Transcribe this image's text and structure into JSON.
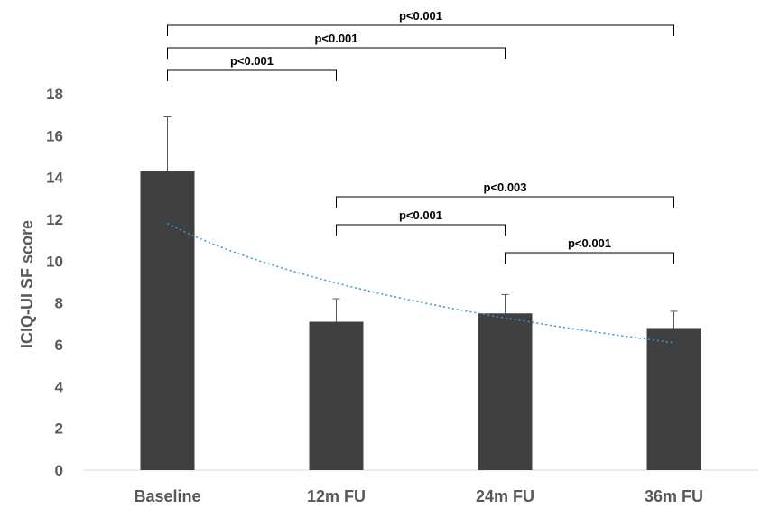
{
  "chart_data": {
    "type": "bar",
    "categories": [
      "Baseline",
      "12m FU",
      "24m FU",
      "36m FU"
    ],
    "values": [
      14.3,
      7.1,
      7.5,
      6.8
    ],
    "error_upper": [
      2.6,
      1.1,
      0.9,
      0.8
    ],
    "ylabel": "ICIQ-UI SF score",
    "ylim": [
      0,
      18
    ],
    "yticks": [
      0,
      2,
      4,
      6,
      8,
      10,
      12,
      14,
      16,
      18
    ],
    "trendline": {
      "style": "dotted",
      "type": "logarithmic",
      "start": 11.8,
      "end": 6.1
    },
    "comparisons": [
      {
        "from": 0,
        "to": 3,
        "label": "p<0.001",
        "level": 0
      },
      {
        "from": 0,
        "to": 2,
        "label": "p<0.001",
        "level": 1
      },
      {
        "from": 0,
        "to": 1,
        "label": "p<0.001",
        "level": 2
      },
      {
        "from": 1,
        "to": 3,
        "label": "p<0.003",
        "level": 3
      },
      {
        "from": 1,
        "to": 2,
        "label": "p<0.001",
        "level": 4
      },
      {
        "from": 2,
        "to": 3,
        "label": "p<0.001",
        "level": 5
      }
    ],
    "colors": {
      "bar": "#404040",
      "trendline": "#2e9ad0",
      "axis": "#d9d9d9"
    }
  }
}
